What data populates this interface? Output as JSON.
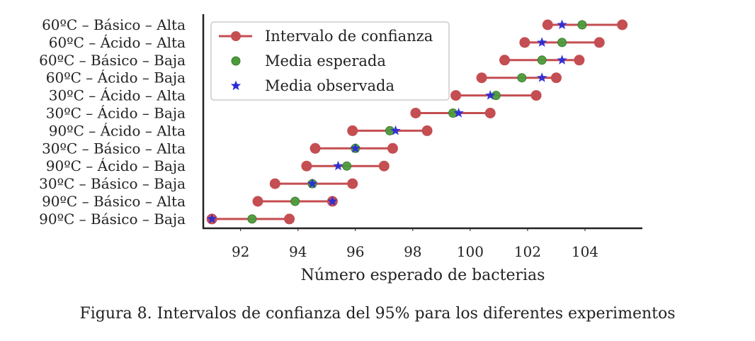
{
  "chart_data": {
    "type": "scatter",
    "subtype": "confidence-interval-dot-plot",
    "xlabel": "Número esperado de bacterias",
    "xlim": [
      90.7,
      106.0
    ],
    "xticks": [
      92,
      94,
      96,
      98,
      100,
      102,
      104
    ],
    "grid": false,
    "legend_position": "upper-left",
    "legend": [
      {
        "name": "Intervalo de confianza",
        "marker": "line-circle",
        "color": "#c44e52"
      },
      {
        "name": "Media esperada",
        "marker": "circle",
        "color": "#4c9a3b"
      },
      {
        "name": "Media observada",
        "marker": "star",
        "color": "#2b2bd6"
      }
    ],
    "categories": [
      "60ºC – Básico – Alta",
      "60ºC – Ácido – Alta",
      "60ºC – Básico – Baja",
      "60ºC – Ácido – Baja",
      "30ºC – Ácido – Alta",
      "30ºC – Ácido – Baja",
      "90ºC – Ácido – Alta",
      "30ºC – Básico – Alta",
      "90ºC – Ácido – Baja",
      "30ºC – Básico – Baja",
      "90ºC – Básico – Alta",
      "90ºC – Básico – Baja"
    ],
    "ci_low": [
      102.7,
      101.9,
      101.2,
      100.4,
      99.5,
      98.1,
      95.9,
      94.6,
      94.3,
      93.2,
      92.6,
      91.0
    ],
    "ci_high": [
      105.3,
      104.5,
      103.8,
      103.0,
      102.3,
      100.7,
      98.5,
      97.3,
      97.0,
      95.9,
      95.2,
      93.7
    ],
    "expected": [
      103.9,
      103.2,
      102.5,
      101.8,
      100.9,
      99.4,
      97.2,
      96.0,
      95.7,
      94.5,
      93.9,
      92.4
    ],
    "observed": [
      103.2,
      102.5,
      103.2,
      102.5,
      100.7,
      99.6,
      97.4,
      96.0,
      95.4,
      94.5,
      95.2,
      91.0
    ]
  },
  "caption": "Figura 8. Intervalos de confianza del 95% para los diferentes experimentos"
}
